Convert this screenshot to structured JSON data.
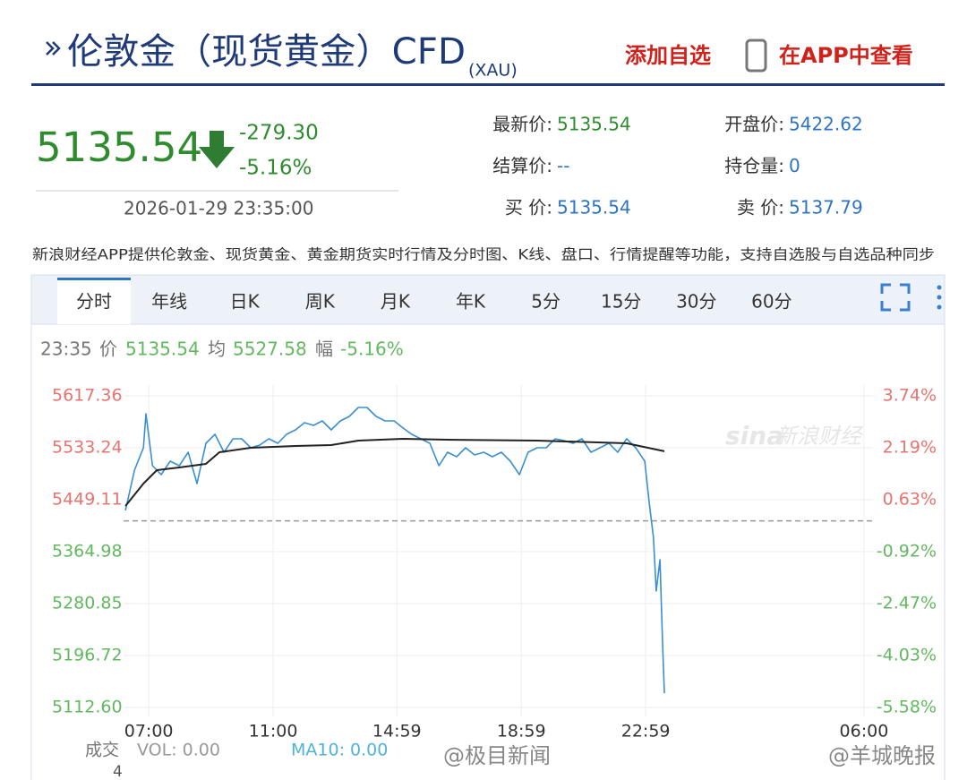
{
  "header": {
    "title": "伦敦金（现货黄金）CFD",
    "code": "(XAU)",
    "add_watchlist": "添加自选",
    "open_app": "在APP中查看"
  },
  "quote": {
    "price": "5135.54",
    "change": "-279.30",
    "change_pct": "-5.16%",
    "time": "2026-01-29 23:35:00"
  },
  "fields": [
    {
      "label": "最新价:",
      "value": "5135.54",
      "color": "#2e8b2e"
    },
    {
      "label": "结算价:",
      "value": "--",
      "color": "#2f74c0"
    },
    {
      "label": "买 价:",
      "value": "5135.54",
      "color": "#2f74c0"
    },
    {
      "label": "开盘价:",
      "value": "5422.62",
      "color": "#2f74c0"
    },
    {
      "label": "持仓量:",
      "value": "0",
      "color": "#2f74c0"
    },
    {
      "label": "卖 价:",
      "value": "5137.79",
      "color": "#2f74c0"
    }
  ],
  "notice": "新浪财经APP提供伦敦金、现货黄金、黄金期货实时行情及分时图、K线、盘口、行情提醒等功能，支持自选股与自选品种同步",
  "tabs": [
    "分时",
    "年线",
    "日K",
    "周K",
    "月K",
    "年K",
    "5分",
    "15分",
    "30分",
    "60分"
  ],
  "active_tab": 0,
  "info": {
    "time": "23:35",
    "price_label": "价",
    "price": "5135.54",
    "avg_label": "均",
    "avg": "5527.58",
    "pct_label": "幅",
    "pct": "-5.16%"
  },
  "chart_data": {
    "type": "line",
    "xlim": [
      6.19,
      30.29
    ],
    "xticks": [
      {
        "value": 7,
        "label": "07:00"
      },
      {
        "value": 11,
        "label": "11:00"
      },
      {
        "value": 14.98,
        "label": "14:59"
      },
      {
        "value": 18.98,
        "label": "18:59"
      },
      {
        "value": 22.98,
        "label": "22:59"
      },
      {
        "value": 30,
        "label": "06:00"
      }
    ],
    "ylim": [
      5112.6,
      5617.36
    ],
    "yticks": [
      5617.36,
      5533.24,
      5449.11,
      5364.98,
      5280.85,
      5196.72,
      {
        "value": 5112.6,
        "label": "5112.60"
      }
    ],
    "y2lim": [
      -5.58,
      3.74
    ],
    "y2ticks": [
      {
        "value": 3.74,
        "label": "3.74%"
      },
      {
        "value": 2.19,
        "label": "2.19%"
      },
      {
        "value": 0.63,
        "label": "0.63%"
      },
      {
        "value": -0.92,
        "label": "-0.92%"
      },
      {
        "value": -2.47,
        "label": "-2.47%"
      },
      {
        "value": -4.03,
        "label": "-4.03%"
      },
      {
        "value": -5.58,
        "label": "-5.58%"
      }
    ],
    "baseline": 5414.84,
    "grid": true,
    "up_color": "#e8736f",
    "down_color": "#62b85e",
    "series": [
      {
        "color": "#3a8fd0",
        "x": [
          6.25,
          6.54,
          6.83,
          6.91,
          7.12,
          7.4,
          7.69,
          7.98,
          8.27,
          8.55,
          8.84,
          9.13,
          9.42,
          9.71,
          9.99,
          10.28,
          10.57,
          10.86,
          11.15,
          11.43,
          11.72,
          12.01,
          12.3,
          12.58,
          12.87,
          13.16,
          13.45,
          13.74,
          14.02,
          14.31,
          14.6,
          14.89,
          15.18,
          15.46,
          15.75,
          16.04,
          16.33,
          16.61,
          16.9,
          17.19,
          17.48,
          17.77,
          18.05,
          18.34,
          18.63,
          18.92,
          19.2,
          19.49,
          19.78,
          20.07,
          20.36,
          20.64,
          20.93,
          21.22,
          21.51,
          21.8,
          22.08,
          22.37,
          22.66,
          22.95,
          23.09,
          23.23,
          23.32,
          23.44,
          23.52,
          23.58
        ],
        "values": [
          5431.7,
          5496.97,
          5533.23,
          5588.35,
          5504.22,
          5489.72,
          5511.47,
          5504.22,
          5525.98,
          5475.21,
          5540.48,
          5554.99,
          5525.98,
          5547.74,
          5547.74,
          5533.23,
          5537.58,
          5547.74,
          5540.48,
          5554.99,
          5562.24,
          5573.84,
          5569.49,
          5576.75,
          5562.24,
          5576.75,
          5584.0,
          5598.5,
          5598.5,
          5584.0,
          5576.75,
          5576.75,
          5565.14,
          5554.99,
          5547.74,
          5540.48,
          5504.22,
          5525.98,
          5518.73,
          5533.23,
          5521.63,
          5525.98,
          5518.73,
          5525.98,
          5511.47,
          5489.72,
          5525.98,
          5533.23,
          5533.23,
          5547.74,
          5544.83,
          5540.48,
          5547.74,
          5525.98,
          5533.23,
          5540.48,
          5525.98,
          5547.74,
          5533.23,
          5511.47,
          5446.2,
          5388.18,
          5301.15,
          5351.92,
          5221.37,
          5135.54
        ]
      },
      {
        "color": "#222222",
        "x": [
          6.25,
          6.83,
          7.26,
          7.98,
          8.84,
          9.27,
          10.28,
          11.72,
          12.87,
          13.74,
          15.18,
          16.61,
          19.49,
          22.37,
          23.58
        ],
        "values": [
          5438.95,
          5475.21,
          5496.97,
          5501.32,
          5507.12,
          5525.98,
          5533.23,
          5536.13,
          5537.58,
          5544.83,
          5547.74,
          5546.29,
          5544.83,
          5540.48,
          5527.58
        ]
      }
    ]
  },
  "volume": {
    "label": "成交",
    "value": "4",
    "vol": "VOL: 0.00",
    "ma10": "MA10: 0.00"
  },
  "sina_logo": "sina",
  "sina_name": "新浪财经",
  "watermarks": [
    "@极目新闻",
    "@羊城晚报"
  ]
}
